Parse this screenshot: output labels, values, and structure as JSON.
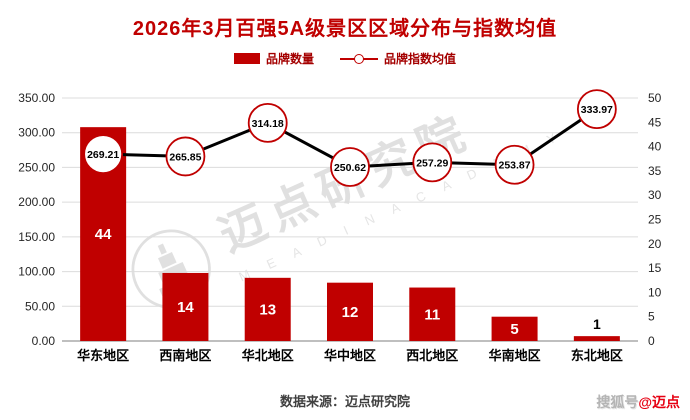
{
  "title": "2026年3月百强5A级景区区域分布与指数均值",
  "legend": [
    {
      "label": "品牌数量"
    },
    {
      "label": "品牌指数均值"
    }
  ],
  "colors": {
    "title": "#c00000",
    "bar": "#c00000",
    "bar_label": "#ffffff",
    "bar_label_outside": "#000000",
    "line": "#000000",
    "marker_fill": "#ffffff",
    "marker_border": "#c00000",
    "grid": "#dcdcdc",
    "axis_line": "#7f7f7f",
    "axis_text": "#262626",
    "category_text": "#000000"
  },
  "chart_data": {
    "type": "bar",
    "subtype": "bar+line combo, dual axis",
    "categories": [
      "华东地区",
      "西南地区",
      "华北地区",
      "华中地区",
      "西北地区",
      "华南地区",
      "东北地区"
    ],
    "series": [
      {
        "name": "品牌数量",
        "type": "bar",
        "axis": "right",
        "values": [
          44,
          14,
          13,
          12,
          11,
          5,
          1
        ],
        "labels": [
          "44",
          "14",
          "13",
          "12",
          "11",
          "5",
          "1"
        ]
      },
      {
        "name": "品牌指数均值",
        "type": "line",
        "axis": "left",
        "values": [
          269.21,
          265.85,
          314.18,
          250.62,
          257.29,
          253.87,
          333.97
        ],
        "labels": [
          "269.21",
          "265.85",
          "314.18",
          "250.62",
          "257.29",
          "253.87",
          "333.97"
        ]
      }
    ],
    "left_axis": {
      "min": 0,
      "max": 350,
      "step": 50,
      "ticks": [
        {
          "v": 350,
          "label": "350.00"
        },
        {
          "v": 300,
          "label": "300.00"
        },
        {
          "v": 250,
          "label": "250.00"
        },
        {
          "v": 200,
          "label": "200.00"
        },
        {
          "v": 150,
          "label": "150.00"
        },
        {
          "v": 100,
          "label": "100.00"
        },
        {
          "v": 50,
          "label": "50.00"
        },
        {
          "v": 0,
          "label": "0.00"
        }
      ]
    },
    "right_axis": {
      "min": 0,
      "max": 50,
      "step": 5,
      "ticks": [
        {
          "v": 50,
          "label": "50"
        },
        {
          "v": 45,
          "label": "45"
        },
        {
          "v": 40,
          "label": "40"
        },
        {
          "v": 35,
          "label": "35"
        },
        {
          "v": 30,
          "label": "30"
        },
        {
          "v": 25,
          "label": "25"
        },
        {
          "v": 20,
          "label": "20"
        },
        {
          "v": 15,
          "label": "15"
        },
        {
          "v": 10,
          "label": "10"
        },
        {
          "v": 5,
          "label": "5"
        },
        {
          "v": 0,
          "label": "0"
        }
      ]
    },
    "grid": "horizontal",
    "legend_position": "top"
  },
  "watermark": {
    "text": "迈点研究院",
    "subtext": "M E A D I N   A C A D E M Y"
  },
  "footer": {
    "source": "数据来源：迈点研究院"
  },
  "badge": {
    "prefix": "搜狐号",
    "suffix": "@迈点"
  }
}
